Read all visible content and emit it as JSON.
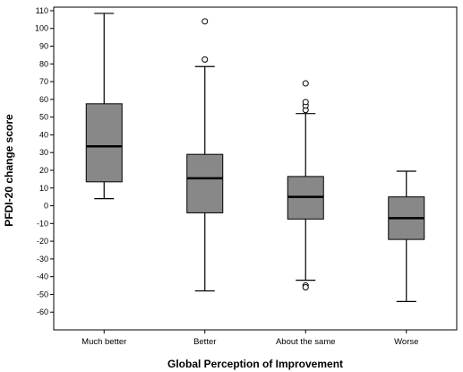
{
  "chart_data": {
    "type": "boxplot",
    "title": "",
    "xlabel": "Global Perception of Improvement",
    "ylabel": "PFDI-20 change score",
    "ylim": [
      -70,
      112
    ],
    "yticks": [
      110,
      100,
      90,
      80,
      70,
      60,
      50,
      40,
      30,
      20,
      10,
      0,
      -10,
      -20,
      -30,
      -40,
      -50,
      -60
    ],
    "grid": false,
    "legend": "none",
    "box_fill": "#888888",
    "categories": [
      "Much better",
      "Better",
      "About the same",
      "Worse"
    ],
    "boxes": [
      {
        "category": "Much better",
        "whisker_low": 4,
        "q1": 13.5,
        "median": 33.5,
        "q3": 57.5,
        "whisker_high": 108.5,
        "outliers": []
      },
      {
        "category": "Better",
        "whisker_low": -48,
        "q1": -4,
        "median": 15.5,
        "q3": 29,
        "whisker_high": 78.5,
        "outliers": [
          82.5,
          104
        ]
      },
      {
        "category": "About the same",
        "whisker_low": -42,
        "q1": -7.5,
        "median": 5,
        "q3": 16.5,
        "whisker_high": 52,
        "outliers": [
          54,
          56.5,
          58.5,
          69,
          -45,
          -46
        ]
      },
      {
        "category": "Worse",
        "whisker_low": -54,
        "q1": -19,
        "median": -7,
        "q3": 5,
        "whisker_high": 19.5,
        "outliers": []
      }
    ]
  }
}
